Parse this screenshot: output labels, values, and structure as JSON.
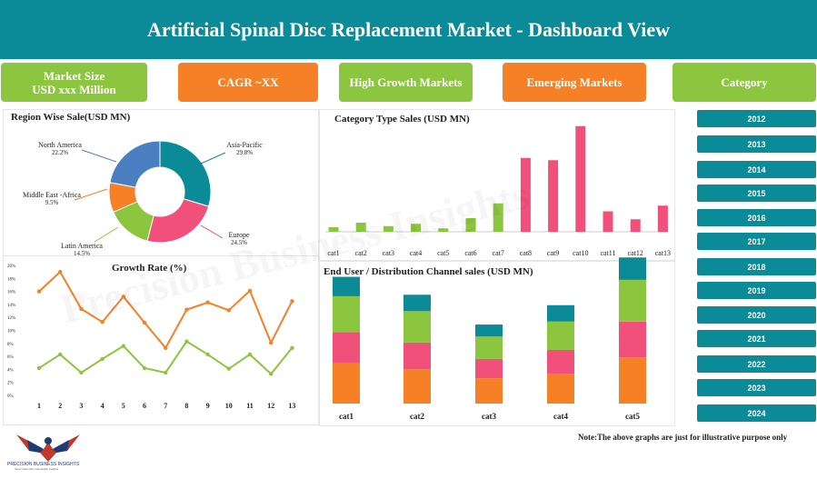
{
  "header": {
    "title": "Artificial Spinal Disc Replacement Market  -  Dashboard View"
  },
  "kpis": [
    {
      "line1": "Market Size",
      "line2": "USD xxx Million",
      "color": "#8cc63f"
    },
    {
      "line1": "CAGR  ~XX",
      "line2": "",
      "color": "#f58025"
    },
    {
      "line1": "High Growth Markets",
      "line2": "",
      "color": "#8cc63f"
    },
    {
      "line1": "Emerging Markets",
      "line2": "",
      "color": "#f58025"
    },
    {
      "line1": "Category",
      "line2": "",
      "color": "#8cc63f"
    }
  ],
  "years": [
    "2012",
    "2013",
    "2014",
    "2015",
    "2016",
    "2017",
    "2018",
    "2019",
    "2020",
    "2021",
    "2022",
    "2023",
    "2024"
  ],
  "note": "Note:The above graphs are just for illustrative purpose only",
  "watermark": "Precision Business Insights",
  "logo": {
    "name": "PRECISION BUSINESS INSIGHTS",
    "tagline": "Taper Data with Unbeatable Insights"
  },
  "chart_data": [
    {
      "type": "pie",
      "title": "Region Wise Sale(USD MN)",
      "slices": [
        {
          "label": "Asia-Pacific",
          "pct_label": "29.8%",
          "value": 29.8,
          "color": "#0b8b97"
        },
        {
          "label": "Europe",
          "pct_label": "24.5%",
          "value": 24.5,
          "color": "#f0507a"
        },
        {
          "label": "Latin America",
          "pct_label": "14.5%",
          "value": 14.5,
          "color": "#8cc63f"
        },
        {
          "label": "Middle East -Africa",
          "pct_label": "9.5%",
          "value": 9.5,
          "color": "#f58025"
        },
        {
          "label": "North America",
          "pct_label": "22.2%",
          "value": 22.2,
          "color": "#4a7fc1"
        }
      ]
    },
    {
      "type": "bar",
      "title": "Category Type Sales (USD MN)",
      "categories": [
        "cat1",
        "cat2",
        "cat3",
        "cat4",
        "cat5",
        "cat6",
        "cat7",
        "cat8",
        "cat9",
        "cat10",
        "cat11",
        "cat12",
        "cat13"
      ],
      "values": [
        4,
        8,
        5,
        7,
        3,
        12,
        25,
        65,
        63,
        93,
        18,
        11,
        23
      ],
      "colors": [
        "#8cc63f",
        "#8cc63f",
        "#8cc63f",
        "#8cc63f",
        "#8cc63f",
        "#8cc63f",
        "#8cc63f",
        "#f0507a",
        "#f0507a",
        "#f0507a",
        "#f0507a",
        "#f0507a",
        "#f0507a"
      ],
      "ylim": [
        0,
        100
      ]
    },
    {
      "type": "line",
      "title": "Growth Rate (%)",
      "x": [
        "1",
        "2",
        "3",
        "4",
        "5",
        "6",
        "7",
        "8",
        "9",
        "10",
        "11",
        "12",
        "13"
      ],
      "yticks": [
        "0%",
        "2%",
        "4%",
        "6%",
        "8%",
        "10%",
        "12%",
        "14%",
        "16%",
        "18%",
        "20%"
      ],
      "ylim": [
        0,
        20
      ],
      "series": [
        {
          "values": [
            16,
            19,
            13.3,
            11.3,
            15.2,
            11.2,
            7.3,
            13.2,
            14.3,
            13.1,
            16.1,
            8.1,
            14.5
          ],
          "color": "#f58025"
        },
        {
          "values": [
            4.2,
            6.3,
            3.5,
            5.6,
            7.6,
            4.2,
            3.5,
            8.3,
            6.3,
            4.1,
            6.3,
            3.3,
            7.3
          ],
          "color": "#8cc63f"
        }
      ]
    },
    {
      "type": "bar",
      "stacked": true,
      "title": "End User / Distribution Channel sales (USD MN)",
      "categories": [
        "cat1",
        "cat2",
        "cat3",
        "cat4",
        "cat5"
      ],
      "ylim": [
        0,
        100
      ],
      "series": [
        {
          "values": [
            27,
            23,
            17,
            20,
            31
          ],
          "color": "#f58025"
        },
        {
          "values": [
            21,
            18,
            13,
            16,
            24
          ],
          "color": "#f0507a"
        },
        {
          "values": [
            24,
            21,
            15,
            19,
            28
          ],
          "color": "#8cc63f"
        },
        {
          "values": [
            13,
            11,
            8,
            11,
            15
          ],
          "color": "#0b8b97"
        }
      ]
    }
  ]
}
